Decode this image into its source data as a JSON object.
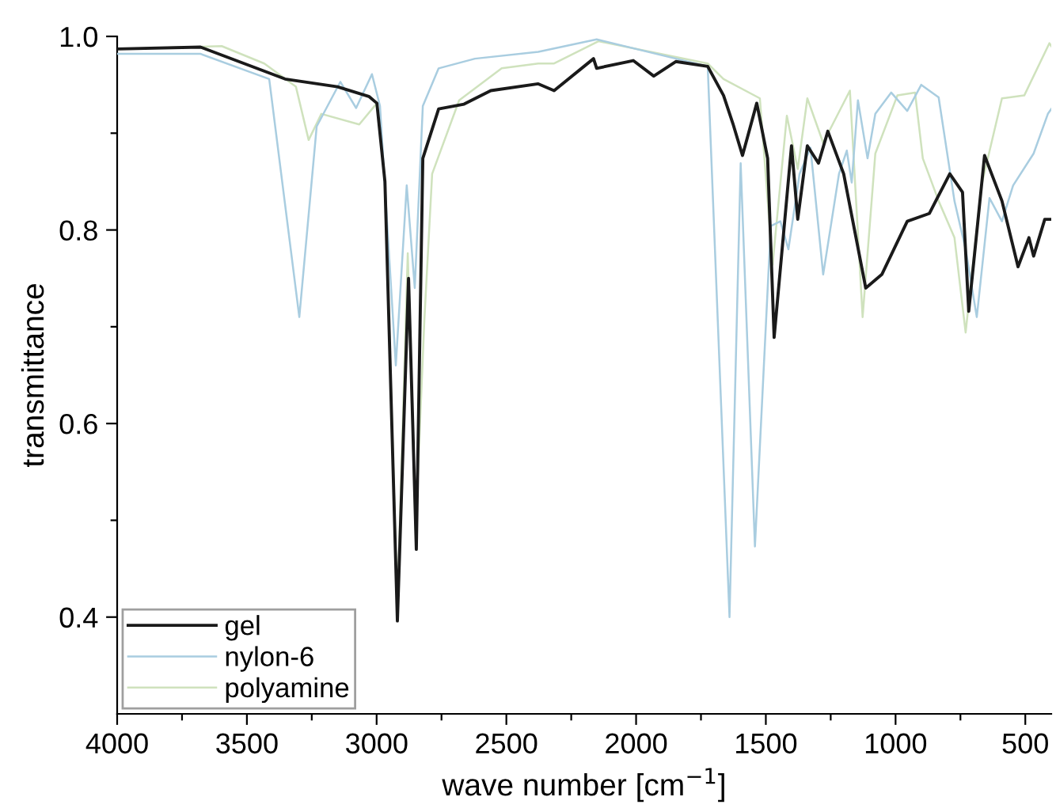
{
  "chart_data": {
    "type": "line",
    "xlabel": "wave number [cm$^{−1}$]",
    "ylabel": "transmittance",
    "xlim": [
      4000,
      400
    ],
    "ylim": [
      0.3,
      1.0
    ],
    "xticks": [
      4000,
      {
        "value": 3750,
        "label": null
      },
      3500,
      {
        "value": 3250,
        "label": null
      },
      3000,
      {
        "value": 2750,
        "label": null
      },
      2500,
      {
        "value": 2250,
        "label": null
      },
      2000,
      {
        "value": 1750,
        "label": null
      },
      1500,
      {
        "value": 1250,
        "label": null
      },
      1000,
      {
        "value": 750,
        "label": null
      },
      500
    ],
    "yticks": [
      {
        "value": 0.4,
        "label": "0.4"
      },
      {
        "value": 0.5,
        "label": null
      },
      {
        "value": 0.6,
        "label": "0.6"
      },
      {
        "value": 0.7,
        "label": null
      },
      {
        "value": 0.8,
        "label": "0.8"
      },
      {
        "value": 0.9,
        "label": null
      },
      {
        "value": 1.0,
        "label": "1.0"
      }
    ],
    "grid": false,
    "legend": "bottom left",
    "marker": "none",
    "line_style": "solid",
    "series": [
      {
        "name": "gel",
        "color": "#1a1a1a",
        "x": [
          4000,
          3679,
          3353,
          3151,
          3030,
          2999,
          2968,
          2920,
          2877,
          2847,
          2822,
          2761,
          2663,
          2560,
          2377,
          2316,
          2164,
          2152,
          2011,
          1932,
          1847,
          1724,
          1663,
          1627,
          1590,
          1535,
          1493,
          1468,
          1401,
          1377,
          1340,
          1297,
          1261,
          1200,
          1115,
          1053,
          955,
          870,
          791,
          742,
          718,
          657,
          590,
          528,
          486,
          468,
          425,
          400
        ],
        "values": [
          0.987,
          0.989,
          0.956,
          0.948,
          0.938,
          0.931,
          0.85,
          0.396,
          0.75,
          0.47,
          0.874,
          0.925,
          0.93,
          0.944,
          0.951,
          0.944,
          0.977,
          0.967,
          0.975,
          0.959,
          0.974,
          0.969,
          0.939,
          0.91,
          0.877,
          0.931,
          0.874,
          0.689,
          0.887,
          0.811,
          0.887,
          0.869,
          0.902,
          0.858,
          0.74,
          0.754,
          0.809,
          0.817,
          0.858,
          0.839,
          0.716,
          0.877,
          0.83,
          0.762,
          0.792,
          0.773,
          0.811,
          0.811
        ]
      },
      {
        "name": "nylon-6",
        "color": "#a9cde0",
        "x": [
          4000,
          3679,
          3414,
          3298,
          3231,
          3140,
          3079,
          3018,
          2987,
          2926,
          2884,
          2853,
          2822,
          2761,
          2621,
          2377,
          2359,
          2152,
          1724,
          1640,
          1597,
          1542,
          1481,
          1444,
          1413,
          1370,
          1328,
          1279,
          1218,
          1188,
          1169,
          1145,
          1108,
          1078,
          1017,
          955,
          901,
          834,
          773,
          730,
          687,
          638,
          590,
          547,
          468,
          413,
          400
        ],
        "values": [
          0.982,
          0.982,
          0.956,
          0.71,
          0.907,
          0.953,
          0.926,
          0.961,
          0.928,
          0.66,
          0.846,
          0.74,
          0.928,
          0.967,
          0.977,
          0.984,
          0.985,
          0.997,
          0.969,
          0.4,
          0.869,
          0.473,
          0.804,
          0.809,
          0.78,
          0.858,
          0.885,
          0.754,
          0.858,
          0.882,
          0.849,
          0.934,
          0.874,
          0.92,
          0.942,
          0.923,
          0.95,
          0.937,
          0.83,
          0.78,
          0.71,
          0.833,
          0.809,
          0.846,
          0.879,
          0.92,
          0.925
        ]
      },
      {
        "name": "polyamine",
        "color": "#cfe2bd",
        "x": [
          4000,
          3597,
          3433,
          3311,
          3262,
          3213,
          3067,
          2999,
          2968,
          2920,
          2880,
          2850,
          2816,
          2786,
          2682,
          2518,
          2377,
          2316,
          2145,
          1724,
          1663,
          1523,
          1474,
          1419,
          1377,
          1340,
          1279,
          1176,
          1127,
          1078,
          993,
          925,
          895,
          834,
          773,
          730,
          669,
          590,
          504,
          407,
          400
        ],
        "values": [
          0.987,
          0.99,
          0.972,
          0.948,
          0.893,
          0.92,
          0.909,
          0.931,
          0.85,
          0.41,
          0.776,
          0.49,
          0.707,
          0.858,
          0.934,
          0.967,
          0.972,
          0.972,
          0.995,
          0.972,
          0.956,
          0.936,
          0.764,
          0.918,
          0.863,
          0.936,
          0.89,
          0.944,
          0.71,
          0.879,
          0.939,
          0.942,
          0.874,
          0.83,
          0.792,
          0.694,
          0.846,
          0.936,
          0.939,
          0.993,
          0.99
        ]
      }
    ]
  }
}
